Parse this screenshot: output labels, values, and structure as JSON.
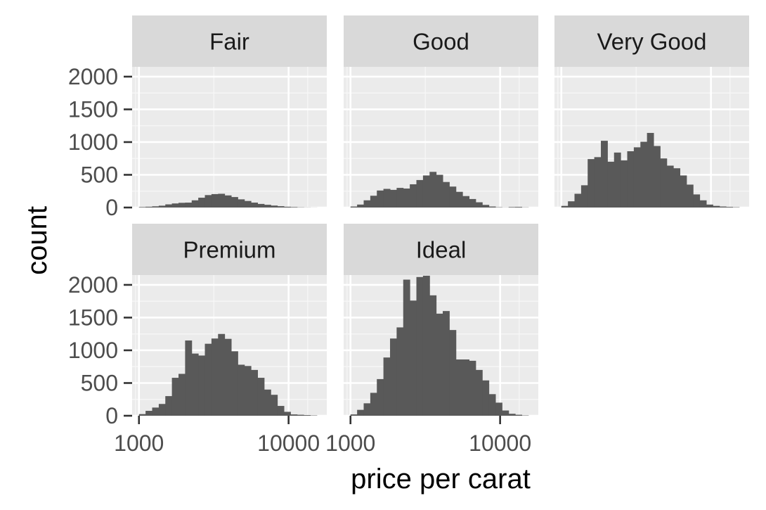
{
  "chart_data": {
    "type": "bar",
    "xlabel": "price per carat",
    "ylabel": "count",
    "x_scale": "log10",
    "xlim": [
      900,
      18000
    ],
    "ylim": [
      0,
      2150
    ],
    "x_ticks": [
      1000,
      10000
    ],
    "x_tick_labels": [
      "1000",
      "10000"
    ],
    "y_ticks": [
      0,
      500,
      1000,
      1500,
      2000
    ],
    "y_tick_labels": [
      "0",
      "500",
      "1000",
      "1500",
      "2000"
    ],
    "grid": true,
    "bin_edges": [
      1000,
      1107,
      1225,
      1356,
      1500,
      1660,
      1838,
      2034,
      2251,
      2491,
      2757,
      3051,
      3377,
      3737,
      4136,
      4577,
      5066,
      5606,
      6204,
      6866,
      7599,
      8410,
      9307,
      10300,
      11399,
      12615,
      13961,
      15451,
      17099
    ],
    "panels": [
      {
        "facet": "Fair",
        "counts": [
          8,
          12,
          18,
          28,
          48,
          62,
          72,
          75,
          110,
          150,
          190,
          205,
          210,
          185,
          160,
          125,
          100,
          75,
          55,
          42,
          30,
          20,
          12,
          8,
          4,
          2,
          1,
          0
        ]
      },
      {
        "facet": "Good",
        "counts": [
          15,
          45,
          110,
          180,
          260,
          285,
          270,
          300,
          290,
          355,
          420,
          490,
          545,
          500,
          390,
          320,
          240,
          175,
          130,
          80,
          40,
          15,
          5,
          2,
          8,
          10,
          3,
          0
        ]
      },
      {
        "facet": "Very Good",
        "counts": [
          25,
          95,
          210,
          340,
          740,
          770,
          1020,
          700,
          840,
          720,
          860,
          920,
          1005,
          1140,
          940,
          750,
          640,
          600,
          490,
          350,
          200,
          110,
          45,
          25,
          15,
          10,
          5,
          0
        ]
      },
      {
        "facet": "Premium",
        "counts": [
          25,
          75,
          125,
          180,
          300,
          580,
          640,
          1150,
          950,
          920,
          1100,
          1180,
          1250,
          1175,
          985,
          780,
          760,
          700,
          580,
          400,
          320,
          150,
          60,
          20,
          15,
          10,
          5,
          0
        ]
      },
      {
        "facet": "Ideal",
        "counts": [
          20,
          90,
          190,
          350,
          560,
          890,
          1180,
          1350,
          2080,
          1760,
          2120,
          2140,
          1840,
          1560,
          1600,
          1310,
          860,
          860,
          840,
          700,
          540,
          330,
          200,
          80,
          30,
          15,
          5,
          0
        ]
      }
    ]
  }
}
